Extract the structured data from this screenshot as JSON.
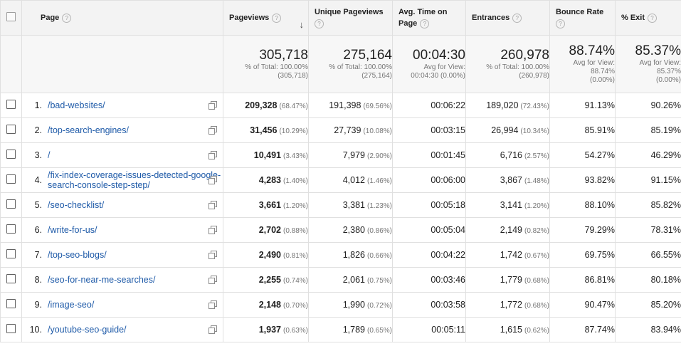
{
  "headers": {
    "page": "Page",
    "pageviews": "Pageviews",
    "sort_arrow": "↓",
    "unique_pageviews": "Unique Pageviews",
    "avg_time": "Avg. Time on Page",
    "entrances": "Entrances",
    "bounce_rate": "Bounce Rate",
    "exit": "% Exit",
    "help": "?"
  },
  "summary": {
    "pageviews": {
      "value": "305,718",
      "line1": "% of Total: 100.00%",
      "line2": "(305,718)"
    },
    "unique_pageviews": {
      "value": "275,164",
      "line1": "% of Total: 100.00%",
      "line2": "(275,164)"
    },
    "avg_time": {
      "value": "00:04:30",
      "line1": "Avg for View:",
      "line2": "00:04:30 (0.00%)"
    },
    "entrances": {
      "value": "260,978",
      "line1": "% of Total: 100.00%",
      "line2": "(260,978)"
    },
    "bounce_rate": {
      "value": "88.74%",
      "line1": "Avg for View:",
      "line2": "88.74%",
      "line3": "(0.00%)"
    },
    "exit": {
      "value": "85.37%",
      "line1": "Avg for View:",
      "line2": "85.37%",
      "line3": "(0.00%)"
    }
  },
  "rows": [
    {
      "index": "1.",
      "page": "/bad-websites/",
      "pageviews": "209,328",
      "pageviews_pct": "(68.47%)",
      "unique": "191,398",
      "unique_pct": "(69.56%)",
      "avg_time": "00:06:22",
      "entrances": "189,020",
      "entrances_pct": "(72.43%)",
      "bounce": "91.13%",
      "exit": "90.26%"
    },
    {
      "index": "2.",
      "page": "/top-search-engines/",
      "pageviews": "31,456",
      "pageviews_pct": "(10.29%)",
      "unique": "27,739",
      "unique_pct": "(10.08%)",
      "avg_time": "00:03:15",
      "entrances": "26,994",
      "entrances_pct": "(10.34%)",
      "bounce": "85.91%",
      "exit": "85.19%"
    },
    {
      "index": "3.",
      "page": "/",
      "pageviews": "10,491",
      "pageviews_pct": "(3.43%)",
      "unique": "7,979",
      "unique_pct": "(2.90%)",
      "avg_time": "00:01:45",
      "entrances": "6,716",
      "entrances_pct": "(2.57%)",
      "bounce": "54.27%",
      "exit": "46.29%"
    },
    {
      "index": "4.",
      "page": "/fix-index-coverage-issues-detected-google-search-console-step-step/",
      "pageviews": "4,283",
      "pageviews_pct": "(1.40%)",
      "unique": "4,012",
      "unique_pct": "(1.46%)",
      "avg_time": "00:06:00",
      "entrances": "3,867",
      "entrances_pct": "(1.48%)",
      "bounce": "93.82%",
      "exit": "91.15%"
    },
    {
      "index": "5.",
      "page": "/seo-checklist/",
      "pageviews": "3,661",
      "pageviews_pct": "(1.20%)",
      "unique": "3,381",
      "unique_pct": "(1.23%)",
      "avg_time": "00:05:18",
      "entrances": "3,141",
      "entrances_pct": "(1.20%)",
      "bounce": "88.10%",
      "exit": "85.82%"
    },
    {
      "index": "6.",
      "page": "/write-for-us/",
      "pageviews": "2,702",
      "pageviews_pct": "(0.88%)",
      "unique": "2,380",
      "unique_pct": "(0.86%)",
      "avg_time": "00:05:04",
      "entrances": "2,149",
      "entrances_pct": "(0.82%)",
      "bounce": "79.29%",
      "exit": "78.31%"
    },
    {
      "index": "7.",
      "page": "/top-seo-blogs/",
      "pageviews": "2,490",
      "pageviews_pct": "(0.81%)",
      "unique": "1,826",
      "unique_pct": "(0.66%)",
      "avg_time": "00:04:22",
      "entrances": "1,742",
      "entrances_pct": "(0.67%)",
      "bounce": "69.75%",
      "exit": "66.55%"
    },
    {
      "index": "8.",
      "page": "/seo-for-near-me-searches/",
      "pageviews": "2,255",
      "pageviews_pct": "(0.74%)",
      "unique": "2,061",
      "unique_pct": "(0.75%)",
      "avg_time": "00:03:46",
      "entrances": "1,779",
      "entrances_pct": "(0.68%)",
      "bounce": "86.81%",
      "exit": "80.18%"
    },
    {
      "index": "9.",
      "page": "/image-seo/",
      "pageviews": "2,148",
      "pageviews_pct": "(0.70%)",
      "unique": "1,990",
      "unique_pct": "(0.72%)",
      "avg_time": "00:03:58",
      "entrances": "1,772",
      "entrances_pct": "(0.68%)",
      "bounce": "90.47%",
      "exit": "85.20%"
    },
    {
      "index": "10.",
      "page": "/youtube-seo-guide/",
      "pageviews": "1,937",
      "pageviews_pct": "(0.63%)",
      "unique": "1,789",
      "unique_pct": "(0.65%)",
      "avg_time": "00:05:11",
      "entrances": "1,615",
      "entrances_pct": "(0.62%)",
      "bounce": "87.74%",
      "exit": "83.94%"
    }
  ]
}
